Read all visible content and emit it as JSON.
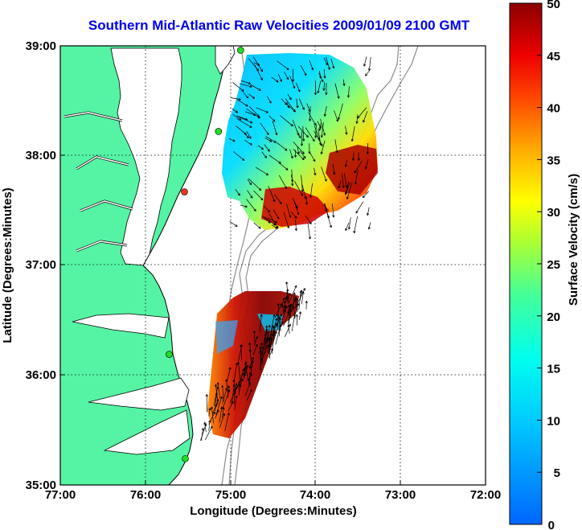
{
  "title": "Southern Mid-Atlantic Raw Velocities 2009/01/09 2100 GMT",
  "axes": {
    "xlabel": "Longitude (Degrees:Minutes)",
    "ylabel": "Latitude (Degrees:Minutes)",
    "xticks": [
      "77:00",
      "76:00",
      "75:00",
      "74:00",
      "73:00",
      "72:00"
    ],
    "yticks": [
      "39:00",
      "38:00",
      "37:00",
      "36:00",
      "35:00"
    ],
    "xlim": [
      -77,
      -72
    ],
    "ylim": [
      35,
      39
    ]
  },
  "colorbar": {
    "label": "Surface Velocity (cm/s)",
    "ticks": [
      "50",
      "45",
      "40",
      "35",
      "30",
      "25",
      "20",
      "15",
      "10",
      "5",
      "0"
    ],
    "range": [
      0,
      50
    ]
  },
  "colors": {
    "land": "#55f4a4",
    "coast": "#000000",
    "bathymetry": "#8c8c8c",
    "station": "#22dd22",
    "station_alt": "#ee3322"
  },
  "stations": [
    {
      "lon": -74.88,
      "lat": 38.96,
      "color": "green"
    },
    {
      "lon": -75.14,
      "lat": 38.22,
      "color": "green"
    },
    {
      "lon": -75.54,
      "lat": 37.67,
      "color": "red"
    },
    {
      "lon": -75.72,
      "lat": 36.19,
      "color": "green"
    },
    {
      "lon": -75.53,
      "lat": 35.24,
      "color": "green"
    }
  ]
}
